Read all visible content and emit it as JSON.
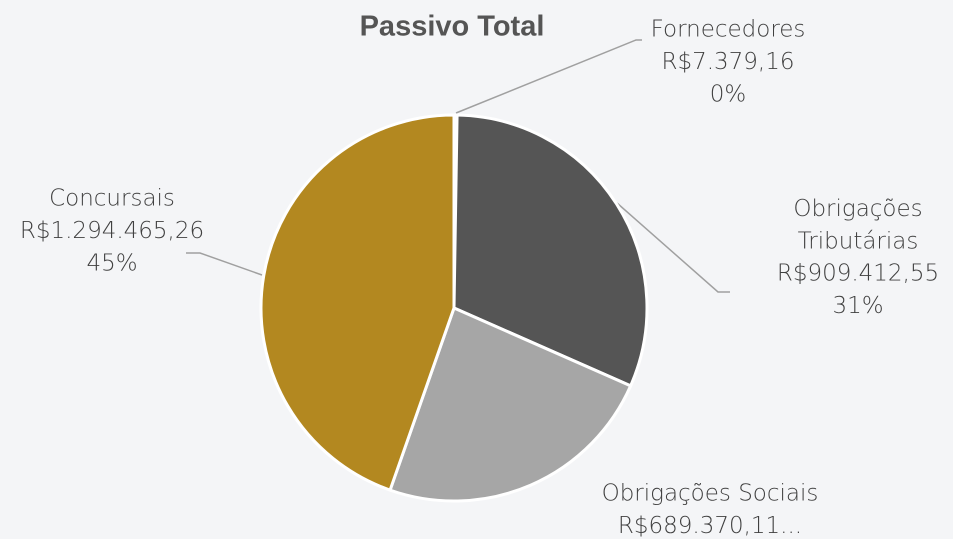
{
  "chart_data": {
    "type": "pie",
    "title": "Passivo Total",
    "categories": [
      "Fornecedores",
      "Obrigações Tributárias",
      "Obrigações Sociais",
      "Concursais"
    ],
    "values": [
      7379.16,
      909412.55,
      689370.11,
      1294465.26
    ],
    "value_labels": [
      "R$7.379,16",
      "R$909.412,55",
      "R$689.370,11...",
      "R$1.294.465,26"
    ],
    "percent_labels": [
      "0%",
      "31%",
      null,
      "45%"
    ],
    "colors": [
      "#c8c8c8",
      "#555555",
      "#a6a6a6",
      "#b38820"
    ]
  }
}
